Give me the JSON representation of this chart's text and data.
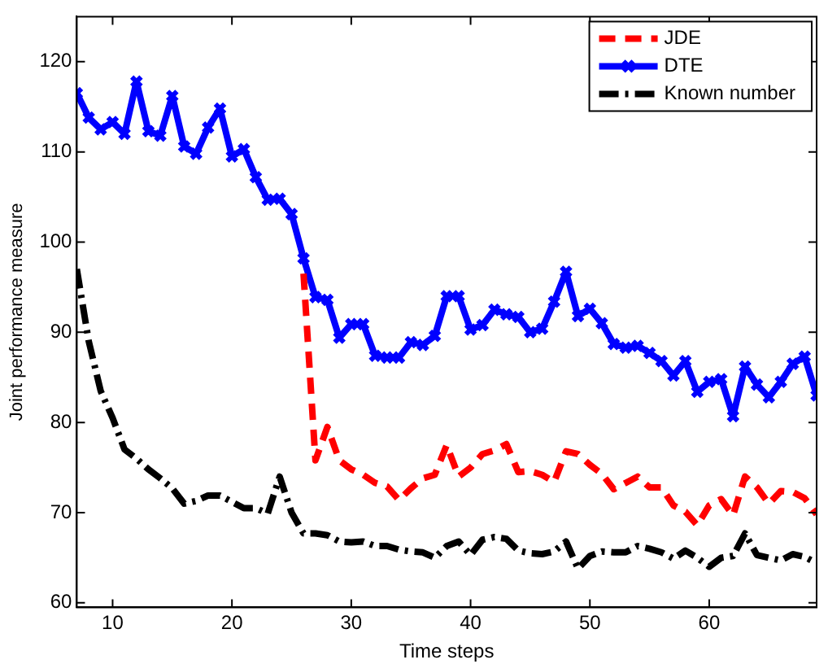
{
  "chart_data": {
    "type": "line",
    "xlabel": "Time steps",
    "ylabel": "Joint performance measure",
    "x": [
      7,
      8,
      9,
      10,
      11,
      12,
      13,
      14,
      15,
      16,
      17,
      18,
      19,
      20,
      21,
      22,
      23,
      24,
      25,
      26,
      27,
      28,
      29,
      30,
      31,
      32,
      33,
      34,
      35,
      36,
      37,
      38,
      39,
      40,
      41,
      42,
      43,
      44,
      45,
      46,
      47,
      48,
      49,
      50,
      51,
      52,
      53,
      54,
      55,
      56,
      57,
      58,
      59,
      60,
      61,
      62,
      63,
      64,
      65,
      66,
      67,
      68,
      69
    ],
    "series": [
      {
        "name": "JDE",
        "color": "#ff0000",
        "line_style": "dashed",
        "marker": "none",
        "values": [
          null,
          null,
          null,
          null,
          null,
          null,
          null,
          null,
          null,
          null,
          null,
          null,
          null,
          null,
          null,
          null,
          null,
          null,
          null,
          96.5,
          75.8,
          79.5,
          75.8,
          74.8,
          74.2,
          73.3,
          72.9,
          71.4,
          72.7,
          73.8,
          74.2,
          77.5,
          74,
          75,
          76.5,
          76.9,
          77.6,
          74.5,
          74.6,
          74.2,
          73.4,
          76.8,
          76.5,
          75.3,
          74.3,
          72.6,
          73.3,
          74,
          72.8,
          72.8,
          70.8,
          70.1,
          68.6,
          70.8,
          71.5,
          69.7,
          74,
          72.8,
          71,
          72.4,
          72.3,
          71.6,
          69.8
        ]
      },
      {
        "name": "DTE",
        "color": "#0000ff",
        "line_style": "solid",
        "marker": "cross",
        "values": [
          116.5,
          113.8,
          112.5,
          113.3,
          112,
          117.8,
          112.3,
          111.8,
          116.2,
          110.6,
          109.8,
          112.7,
          114.8,
          109.5,
          110.3,
          107.2,
          104.7,
          104.8,
          103.1,
          98.2,
          93.9,
          93.6,
          89.4,
          90.9,
          90.9,
          87.4,
          87.2,
          87.2,
          88.9,
          88.6,
          89.6,
          94,
          94,
          90.3,
          90.8,
          92.5,
          92,
          91.7,
          90,
          90.4,
          93.4,
          96.7,
          91.8,
          92.6,
          91,
          88.7,
          88.3,
          88.5,
          87.7,
          86.8,
          85.2,
          86.8,
          83.4,
          84.5,
          84.8,
          80.7,
          86.2,
          84.2,
          82.8,
          84.5,
          86.5,
          87.3,
          83
        ]
      },
      {
        "name": "Known number",
        "color": "#000000",
        "line_style": "dashdot",
        "marker": "none",
        "values": [
          97,
          89,
          83.5,
          80.5,
          77,
          76,
          74.8,
          73.8,
          72.7,
          71,
          71.3,
          71.9,
          71.9,
          71.2,
          70.5,
          70.5,
          69.9,
          74,
          70,
          67.7,
          67.7,
          67.5,
          66.8,
          66.7,
          66.8,
          66.3,
          66.3,
          65.9,
          65.7,
          65.6,
          65,
          66.3,
          66.8,
          65.3,
          67,
          67.3,
          67.1,
          65.8,
          65.5,
          65.4,
          65.7,
          66.8,
          63.8,
          65.2,
          65.7,
          65.6,
          65.6,
          66.3,
          66,
          65.6,
          64.9,
          65.8,
          65,
          64,
          65,
          65.2,
          67.7,
          65.3,
          65,
          64.7,
          65.4,
          65.1,
          64.4
        ]
      }
    ],
    "xlim": [
      7,
      69
    ],
    "xticks": [
      10,
      20,
      30,
      40,
      50,
      60
    ],
    "ylim": [
      59.5,
      125
    ],
    "yticks": [
      60,
      70,
      80,
      90,
      100,
      110,
      120
    ],
    "grid": false,
    "legend": "top right"
  }
}
